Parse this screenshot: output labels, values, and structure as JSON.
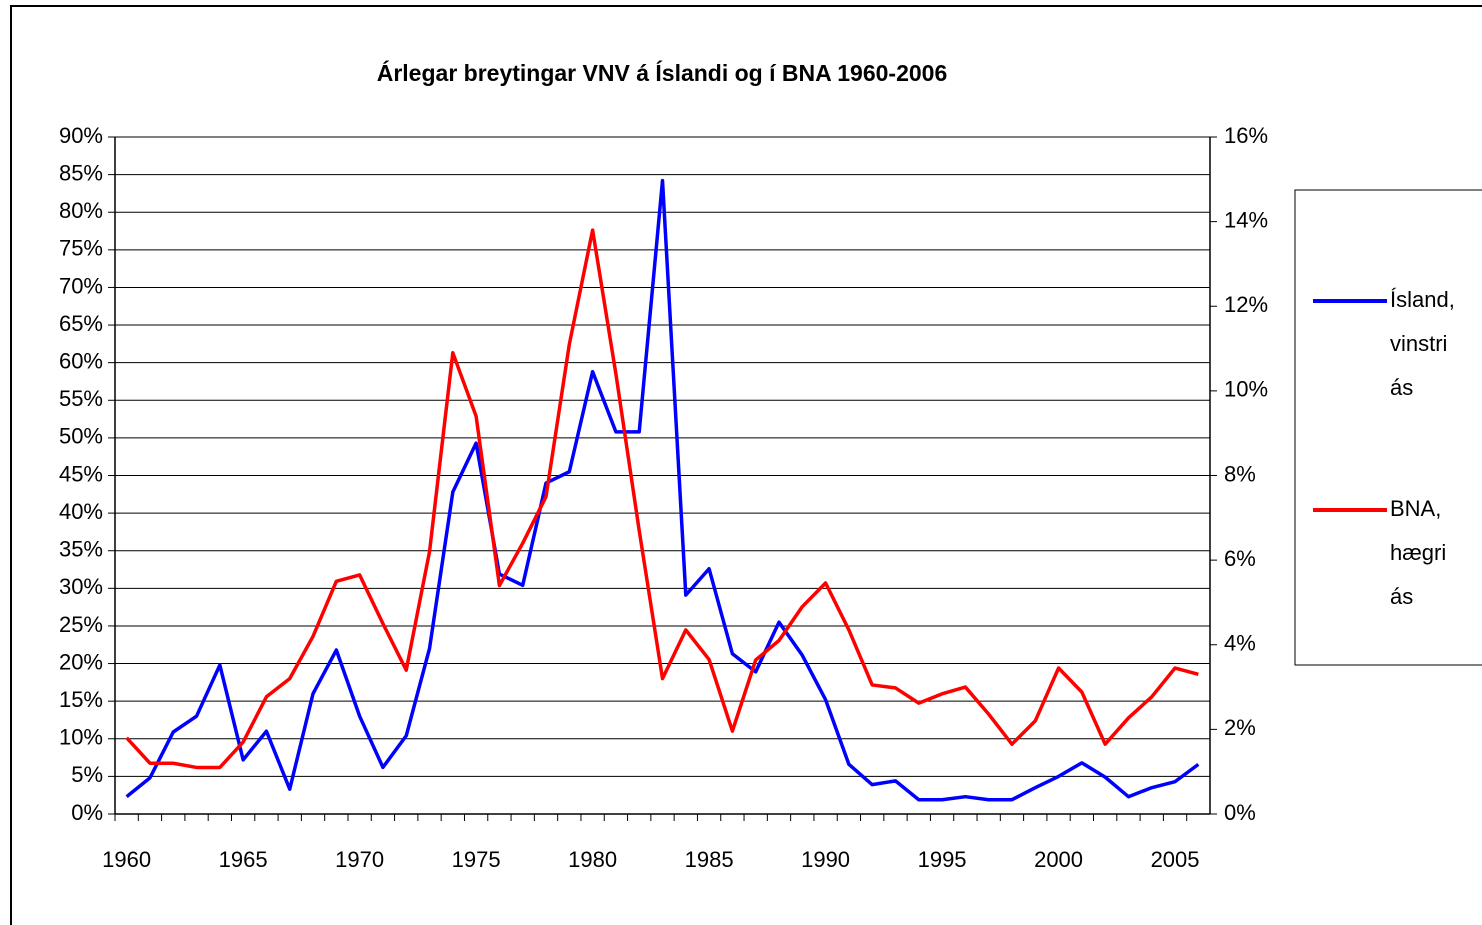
{
  "chart_data": {
    "type": "line",
    "title": "Árlegar breytingar VNV á Íslandi og í BNA 1960-2006",
    "x": [
      1960,
      1961,
      1962,
      1963,
      1964,
      1965,
      1966,
      1967,
      1968,
      1969,
      1970,
      1971,
      1972,
      1973,
      1974,
      1975,
      1976,
      1977,
      1978,
      1979,
      1980,
      1981,
      1982,
      1983,
      1984,
      1985,
      1986,
      1987,
      1988,
      1989,
      1990,
      1991,
      1992,
      1993,
      1994,
      1995,
      1996,
      1997,
      1998,
      1999,
      2000,
      2001,
      2002,
      2003,
      2004,
      2005,
      2006
    ],
    "xlim": [
      1959.5,
      2006.5
    ],
    "xticks": [
      1960,
      1965,
      1970,
      1975,
      1980,
      1985,
      1990,
      1995,
      2000,
      2005
    ],
    "ylim": [
      0,
      90
    ],
    "yticks": [
      {
        "value": 0,
        "label": "0%"
      },
      {
        "value": 5,
        "label": "5%"
      },
      {
        "value": 10,
        "label": "10%"
      },
      {
        "value": 15,
        "label": "15%"
      },
      {
        "value": 20,
        "label": "20%"
      },
      {
        "value": 25,
        "label": "25%"
      },
      {
        "value": 30,
        "label": "30%"
      },
      {
        "value": 35,
        "label": "35%"
      },
      {
        "value": 40,
        "label": "40%"
      },
      {
        "value": 45,
        "label": "45%"
      },
      {
        "value": 50,
        "label": "50%"
      },
      {
        "value": 55,
        "label": "55%"
      },
      {
        "value": 60,
        "label": "60%"
      },
      {
        "value": 65,
        "label": "65%"
      },
      {
        "value": 70,
        "label": "70%"
      },
      {
        "value": 75,
        "label": "75%"
      },
      {
        "value": 80,
        "label": "80%"
      },
      {
        "value": 85,
        "label": "85%"
      },
      {
        "value": 90,
        "label": "90%"
      }
    ],
    "y2lim": [
      0,
      16
    ],
    "y2ticks": [
      {
        "value": 0,
        "label": "0%"
      },
      {
        "value": 2,
        "label": "2%"
      },
      {
        "value": 4,
        "label": "4%"
      },
      {
        "value": 6,
        "label": "6%"
      },
      {
        "value": 8,
        "label": "8%"
      },
      {
        "value": 10,
        "label": "10%"
      },
      {
        "value": 12,
        "label": "12%"
      },
      {
        "value": 14,
        "label": "14%"
      },
      {
        "value": 16,
        "label": "16%"
      }
    ],
    "grid": true,
    "legend": "right",
    "series": [
      {
        "name": "Ísland, vinstri ás",
        "color": "#0000ff",
        "axis": "y",
        "values": [
          2.3,
          4.8,
          10.9,
          13,
          19.8,
          7.2,
          11,
          3.3,
          16,
          21.8,
          13,
          6.2,
          10.4,
          22,
          42.8,
          49.3,
          31.9,
          30.4,
          44,
          45.5,
          58.8,
          50.8,
          50.8,
          84.2,
          29.1,
          32.6,
          21.3,
          18.9,
          25.5,
          21.1,
          15.2,
          6.6,
          3.9,
          4.4,
          1.9,
          1.9,
          2.3,
          1.9,
          1.9,
          3.5,
          5,
          6.8,
          4.9,
          2.3,
          3.5,
          4.3,
          6.6
        ]
      },
      {
        "name": "BNA, hægri ás",
        "color": "#ff0000",
        "axis": "y2",
        "values": [
          1.8,
          1.2,
          1.2,
          1.1,
          1.1,
          1.7,
          2.77,
          3.2,
          4.2,
          5.5,
          5.65,
          4.5,
          3.4,
          6.2,
          10.9,
          9.4,
          5.4,
          6.4,
          7.5,
          11.1,
          13.8,
          10.4,
          6.7,
          3.2,
          4.35,
          3.65,
          1.96,
          3.64,
          4.1,
          4.9,
          5.46,
          4.35,
          3.05,
          2.98,
          2.62,
          2.84,
          3.0,
          2.36,
          1.65,
          2.2,
          3.45,
          2.88,
          1.65,
          2.27,
          2.77,
          3.45,
          3.3
        ]
      }
    ]
  }
}
